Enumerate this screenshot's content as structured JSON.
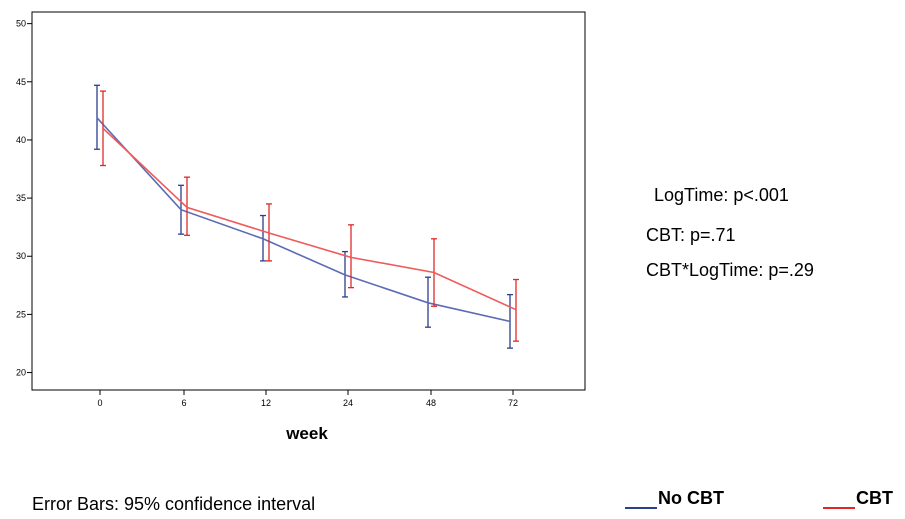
{
  "chart_data": {
    "type": "line",
    "title": "",
    "xlabel": "week",
    "ylabel": "",
    "categories": [
      "0",
      "6",
      "12",
      "24",
      "48",
      "72"
    ],
    "ylim": [
      18.5,
      51
    ],
    "yticks": [
      20,
      25,
      30,
      35,
      40,
      45,
      50
    ],
    "grid": false,
    "series": [
      {
        "name": "No CBT",
        "color": "#5b6bb5",
        "errorbar_color": "#2c3f8f",
        "values": [
          41.9,
          34.0,
          31.5,
          28.4,
          26.0,
          24.4
        ],
        "lower": [
          39.2,
          31.9,
          29.6,
          26.5,
          23.9,
          22.1
        ],
        "upper": [
          44.7,
          36.1,
          33.5,
          30.4,
          28.2,
          26.7
        ]
      },
      {
        "name": "CBT",
        "color": "#ef5a5a",
        "errorbar_color": "#e02828",
        "values": [
          41.0,
          34.2,
          32.0,
          29.9,
          28.6,
          25.4
        ],
        "lower": [
          37.8,
          31.8,
          29.6,
          27.3,
          25.7,
          22.7
        ],
        "upper": [
          44.2,
          36.8,
          34.5,
          32.7,
          31.5,
          28.0
        ]
      }
    ],
    "footnote": "Error Bars: 95% confidence interval"
  },
  "stats": [
    "LogTime: p<.001",
    "CBT: p=.71",
    "CBT*LogTime: p=.29"
  ]
}
